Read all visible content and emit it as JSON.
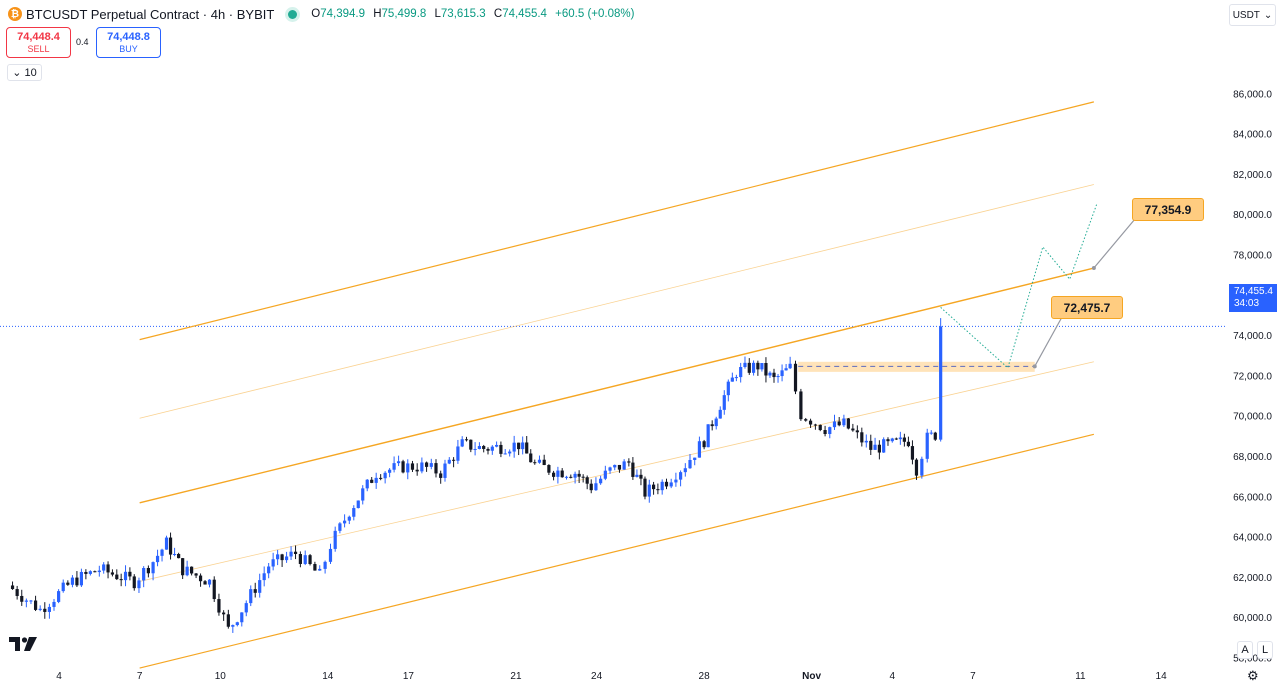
{
  "header": {
    "symbol": "BTCUSDT Perpetual Contract · 4h · BYBIT",
    "logo_glyph": "₿",
    "open_label": "O",
    "open": "74,394.9",
    "high_label": "H",
    "high": "75,499.8",
    "low_label": "L",
    "low": "73,615.3",
    "close_label": "C",
    "close": "74,455.4",
    "change": "+60.5 (+0.08%)"
  },
  "trade": {
    "sell_price": "74,448.4",
    "sell_label": "SELL",
    "spread": "0.4",
    "buy_price": "74,448.8",
    "buy_label": "BUY"
  },
  "indicators": {
    "collapse_label": "10"
  },
  "currency": {
    "label": "USDT"
  },
  "price_tag": {
    "price": "74,455.4",
    "countdown": "34:03"
  },
  "scale_buttons": {
    "auto": "A",
    "log": "L"
  },
  "icons": {
    "settings": "settings-icon",
    "chevron": "chevron-down-icon",
    "tv": "tradingview-logo-icon"
  },
  "colors": {
    "up": "#2962ff",
    "down": "#131722",
    "channel": "#f5a623",
    "channel_mid": "#ffd9a8",
    "zone": "#ffcc80",
    "projection": "#22ab94",
    "tag": "#2962ff"
  },
  "chart_data": {
    "type": "candlestick",
    "title": "BTCUSDT Perpetual Contract · 4h · BYBIT",
    "ylim": [
      57000,
      87000
    ],
    "y_ticks": [
      58000,
      60000,
      62000,
      64000,
      66000,
      68000,
      70000,
      72000,
      74000,
      76000,
      78000,
      80000,
      82000,
      84000,
      86000
    ],
    "y_tick_labels": [
      "58,000.0",
      "60,000.0",
      "62,000.0",
      "64,000.0",
      "66,000.0",
      "68,000.0",
      "70,000.0",
      "72,000.0",
      "74,000.0",
      "76,000.0",
      "78,000.0",
      "80,000.0",
      "82,000.0",
      "84,000.0",
      "86,000.0"
    ],
    "x_labels": [
      {
        "label": "4",
        "day": 4
      },
      {
        "label": "7",
        "day": 7
      },
      {
        "label": "10",
        "day": 10
      },
      {
        "label": "14",
        "day": 14
      },
      {
        "label": "17",
        "day": 17
      },
      {
        "label": "21",
        "day": 21
      },
      {
        "label": "24",
        "day": 24
      },
      {
        "label": "28",
        "day": 28
      },
      {
        "label": "Nov",
        "day": 32
      },
      {
        "label": "4",
        "day": 35
      },
      {
        "label": "7",
        "day": 38
      },
      {
        "label": "11",
        "day": 42
      },
      {
        "label": "14",
        "day": 45
      }
    ],
    "last_price": 74455.4,
    "price_path": [
      [
        2.1,
        61600
      ],
      [
        3.3,
        60400
      ],
      [
        4.5,
        61800
      ],
      [
        5.5,
        62400
      ],
      [
        6.8,
        61800
      ],
      [
        7.5,
        62800
      ],
      [
        8.0,
        63700
      ],
      [
        8.6,
        62400
      ],
      [
        9.6,
        61800
      ],
      [
        10.3,
        59400
      ],
      [
        10.8,
        60400
      ],
      [
        11.8,
        62600
      ],
      [
        12.8,
        63200
      ],
      [
        13.7,
        62100
      ],
      [
        14.1,
        63600
      ],
      [
        14.8,
        65300
      ],
      [
        15.8,
        67200
      ],
      [
        16.8,
        67500
      ],
      [
        17.5,
        67500
      ],
      [
        18.2,
        67200
      ],
      [
        19.0,
        68600
      ],
      [
        19.8,
        68400
      ],
      [
        20.6,
        68500
      ],
      [
        21.1,
        68600
      ],
      [
        21.7,
        67600
      ],
      [
        22.4,
        67300
      ],
      [
        23.2,
        67200
      ],
      [
        23.8,
        66500
      ],
      [
        24.5,
        67300
      ],
      [
        25.2,
        67700
      ],
      [
        25.8,
        66200
      ],
      [
        26.6,
        66800
      ],
      [
        27.3,
        67600
      ],
      [
        28.0,
        68800
      ],
      [
        28.6,
        70600
      ],
      [
        29.2,
        72200
      ],
      [
        30.0,
        72500
      ],
      [
        30.6,
        71800
      ],
      [
        31.2,
        72400
      ],
      [
        31.6,
        70100
      ],
      [
        32.5,
        69400
      ],
      [
        33.2,
        69600
      ],
      [
        34.2,
        68400
      ],
      [
        35.0,
        68600
      ],
      [
        35.6,
        68800
      ],
      [
        35.9,
        67400
      ],
      [
        36.3,
        68900
      ],
      [
        36.6,
        69100
      ],
      [
        36.8,
        74455
      ]
    ],
    "channel": {
      "x_range": [
        7.0,
        42.5
      ],
      "upper": [
        73800,
        85600
      ],
      "upper_mid": [
        69900,
        81500
      ],
      "middle": [
        65700,
        77350
      ],
      "lower_mid": [
        61800,
        72700
      ],
      "lower": [
        57500,
        69100
      ]
    },
    "zone": {
      "x": [
        31.5,
        40.3
      ],
      "y": [
        72200,
        72700
      ],
      "level": 72475.7
    },
    "projection": [
      [
        36.8,
        75400
      ],
      [
        39.3,
        72400
      ],
      [
        40.6,
        78400
      ],
      [
        41.6,
        76800
      ],
      [
        42.6,
        80500
      ]
    ],
    "targets": [
      {
        "label": "77,354.9",
        "value": 77354.9,
        "day": 42.5
      },
      {
        "label": "72,475.7",
        "value": 72475.7,
        "day": 40.3
      }
    ]
  }
}
